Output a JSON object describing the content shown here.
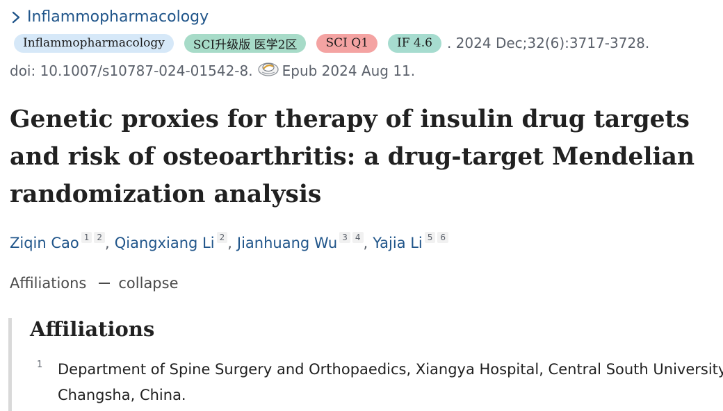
{
  "journal": {
    "link_label": "Inflammopharmacology",
    "chevron_icon": "chevron-right-icon"
  },
  "badges": [
    {
      "label": "Inflammopharmacology",
      "color": "#d6e8f8"
    },
    {
      "label": "SCI升级版 医学2区",
      "color": "#a7dbc8"
    },
    {
      "label": "SCI Q1",
      "color": "#f4a3a2"
    },
    {
      "label": "IF 4.6",
      "color": "#a6dccf"
    }
  ],
  "citation": ". 2024 Dec;32(6):3717-3728.",
  "doi": {
    "text": "doi: 10.1007/s10787-024-01542-8.",
    "epub_icon": "epub-icon",
    "epub": "Epub 2024 Aug 11."
  },
  "title": {
    "lines": [
      "Genetic proxies for therapy of insulin drug targets",
      "and risk of osteoarthritis: a drug-target Mendelian",
      "randomization analysis"
    ]
  },
  "authors": [
    {
      "name": "Ziqin Cao",
      "affiliations": [
        "1",
        "2"
      ]
    },
    {
      "name": "Qiangxiang Li",
      "affiliations": [
        "2"
      ]
    },
    {
      "name": "Jianhuang Wu",
      "affiliations": [
        "3",
        "4"
      ]
    },
    {
      "name": "Yajia Li",
      "affiliations": [
        "5",
        "6"
      ]
    }
  ],
  "affiliations_toggle": {
    "label": "Affiliations",
    "action": "collapse"
  },
  "affiliations_panel": {
    "heading": "Affiliations",
    "items": [
      {
        "number": "1",
        "lines": [
          "Department of Spine Surgery and Orthopaedics, Xiangya Hospital, Central South University,",
          "Changsha, China."
        ]
      }
    ]
  },
  "colors": {
    "link": "#20558a",
    "text": "#212121",
    "muted": "#5b616b",
    "panel_border": "#d9d9d9"
  }
}
